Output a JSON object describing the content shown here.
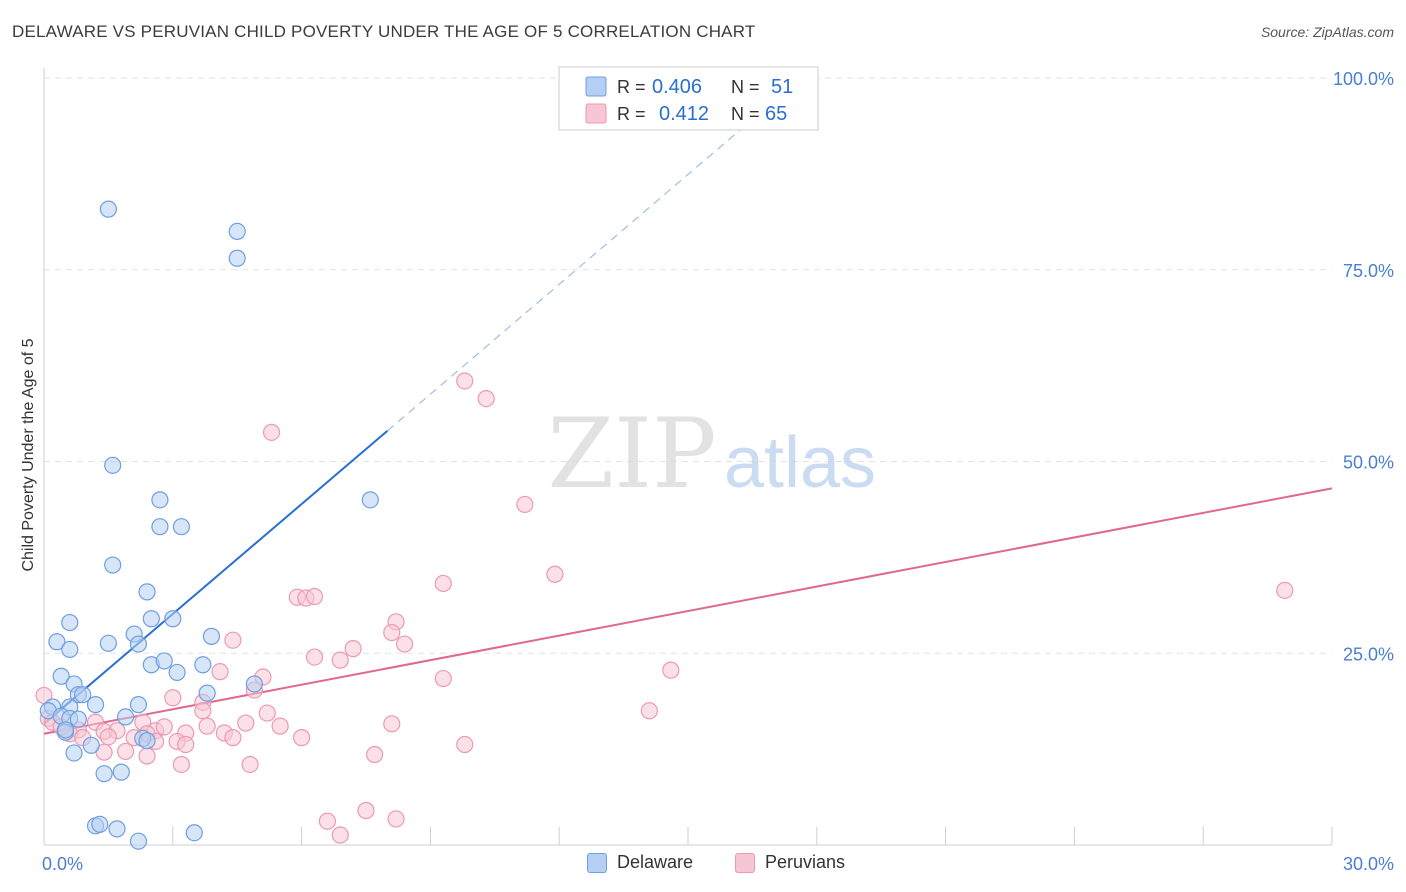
{
  "title": "DELAWARE VS PERUVIAN CHILD POVERTY UNDER THE AGE OF 5 CORRELATION CHART",
  "source": "Source: ZipAtlas.com",
  "watermark": {
    "zip": "ZIP",
    "atlas": "atlas"
  },
  "chart_data": {
    "type": "scatter",
    "title": "DELAWARE VS PERUVIAN CHILD POVERTY UNDER THE AGE OF 5 CORRELATION CHART",
    "xlabel": "",
    "ylabel": "Child Poverty Under the Age of 5",
    "xlim": [
      0,
      30
    ],
    "ylim": [
      0,
      100
    ],
    "x_tick_labels": [
      {
        "value": 0,
        "label": "0.0%"
      },
      {
        "value": 30,
        "label": "30.0%"
      }
    ],
    "y_tick_labels": [
      {
        "value": 25,
        "label": "25.0%"
      },
      {
        "value": 50,
        "label": "50.0%"
      },
      {
        "value": 75,
        "label": "75.0%"
      },
      {
        "value": 100,
        "label": "100.0%"
      }
    ],
    "grid": true,
    "legend": {
      "position": "top-center",
      "entries": [
        {
          "series": "Delaware",
          "r_label": "R =",
          "r_value": "0.406",
          "n_label": "N =",
          "n_value": "51"
        },
        {
          "series": "Peruvians",
          "r_label": "R =",
          "r_value": "0.412",
          "n_label": "N =",
          "n_value": "65"
        }
      ]
    },
    "series": [
      {
        "name": "Delaware",
        "color": "#6f9fe0",
        "fill": "#b4cff3",
        "line_color": "#2a6fd0",
        "trend": {
          "x0": 0,
          "y0": 15.8,
          "x1": 8.0,
          "y1": 54.0,
          "dash_to_x": 16.5
        },
        "points": [
          [
            1.5,
            82.9
          ],
          [
            4.5,
            80.0
          ],
          [
            4.5,
            76.5
          ],
          [
            1.6,
            49.5
          ],
          [
            2.7,
            45.0
          ],
          [
            7.6,
            45.0
          ],
          [
            2.7,
            41.5
          ],
          [
            3.2,
            41.5
          ],
          [
            1.6,
            36.5
          ],
          [
            2.4,
            33.0
          ],
          [
            0.6,
            29.0
          ],
          [
            2.5,
            29.5
          ],
          [
            3.0,
            29.5
          ],
          [
            2.1,
            27.5
          ],
          [
            3.9,
            27.2
          ],
          [
            0.3,
            26.5
          ],
          [
            1.5,
            26.3
          ],
          [
            2.2,
            26.2
          ],
          [
            0.6,
            25.5
          ],
          [
            2.5,
            23.5
          ],
          [
            2.8,
            24.0
          ],
          [
            3.7,
            23.5
          ],
          [
            3.1,
            22.5
          ],
          [
            0.4,
            22.0
          ],
          [
            0.7,
            21.0
          ],
          [
            4.9,
            21.0
          ],
          [
            0.8,
            19.6
          ],
          [
            0.9,
            19.6
          ],
          [
            3.8,
            19.8
          ],
          [
            0.2,
            18.0
          ],
          [
            1.2,
            18.3
          ],
          [
            2.2,
            18.3
          ],
          [
            0.6,
            18.0
          ],
          [
            0.1,
            17.5
          ],
          [
            0.4,
            16.8
          ],
          [
            1.9,
            16.7
          ],
          [
            0.6,
            16.5
          ],
          [
            0.8,
            16.4
          ],
          [
            0.5,
            14.7
          ],
          [
            0.5,
            15.0
          ],
          [
            2.3,
            13.9
          ],
          [
            2.4,
            13.6
          ],
          [
            1.1,
            13.0
          ],
          [
            0.7,
            12.0
          ],
          [
            1.4,
            9.3
          ],
          [
            1.8,
            9.5
          ],
          [
            1.2,
            2.5
          ],
          [
            1.3,
            2.7
          ],
          [
            1.7,
            2.1
          ],
          [
            3.5,
            1.6
          ],
          [
            2.2,
            0.5
          ]
        ]
      },
      {
        "name": "Peruvians",
        "color": "#ec9ab3",
        "fill": "#f7c6d4",
        "line_color": "#e0678f",
        "trend": {
          "x0": 0,
          "y0": 14.5,
          "x1": 30,
          "y1": 46.5
        },
        "points": [
          [
            9.8,
            60.5
          ],
          [
            10.3,
            58.2
          ],
          [
            5.3,
            53.8
          ],
          [
            11.2,
            44.4
          ],
          [
            11.9,
            35.3
          ],
          [
            9.3,
            34.1
          ],
          [
            28.9,
            33.2
          ],
          [
            5.9,
            32.3
          ],
          [
            6.1,
            32.2
          ],
          [
            6.3,
            32.4
          ],
          [
            8.2,
            29.1
          ],
          [
            8.1,
            27.7
          ],
          [
            4.4,
            26.7
          ],
          [
            8.4,
            26.2
          ],
          [
            7.2,
            25.6
          ],
          [
            6.3,
            24.5
          ],
          [
            6.9,
            24.1
          ],
          [
            14.6,
            22.8
          ],
          [
            4.1,
            22.6
          ],
          [
            5.1,
            21.9
          ],
          [
            9.3,
            21.7
          ],
          [
            4.9,
            20.2
          ],
          [
            3.0,
            19.2
          ],
          [
            3.7,
            18.6
          ],
          [
            3.7,
            17.5
          ],
          [
            14.1,
            17.5
          ],
          [
            5.2,
            17.2
          ],
          [
            4.7,
            15.9
          ],
          [
            8.1,
            15.8
          ],
          [
            0.1,
            16.5
          ],
          [
            0.2,
            16.0
          ],
          [
            1.2,
            16.0
          ],
          [
            2.3,
            16.0
          ],
          [
            2.6,
            14.9
          ],
          [
            2.8,
            15.4
          ],
          [
            0.8,
            15.0
          ],
          [
            1.4,
            14.8
          ],
          [
            1.7,
            14.9
          ],
          [
            2.4,
            14.5
          ],
          [
            0.6,
            14.5
          ],
          [
            0.9,
            14.0
          ],
          [
            3.8,
            15.5
          ],
          [
            5.5,
            15.5
          ],
          [
            1.5,
            14.1
          ],
          [
            2.1,
            14.0
          ],
          [
            0.4,
            15.4
          ],
          [
            3.3,
            14.6
          ],
          [
            4.2,
            14.6
          ],
          [
            4.4,
            14.0
          ],
          [
            3.1,
            13.5
          ],
          [
            2.6,
            13.5
          ],
          [
            6.0,
            14.0
          ],
          [
            9.8,
            13.1
          ],
          [
            3.3,
            13.1
          ],
          [
            1.4,
            12.1
          ],
          [
            1.9,
            12.2
          ],
          [
            7.7,
            11.8
          ],
          [
            2.4,
            11.6
          ],
          [
            3.2,
            10.5
          ],
          [
            4.8,
            10.5
          ],
          [
            0.0,
            19.5
          ],
          [
            7.5,
            4.5
          ],
          [
            8.2,
            3.4
          ],
          [
            6.6,
            3.1
          ],
          [
            6.9,
            1.3
          ]
        ]
      }
    ]
  }
}
